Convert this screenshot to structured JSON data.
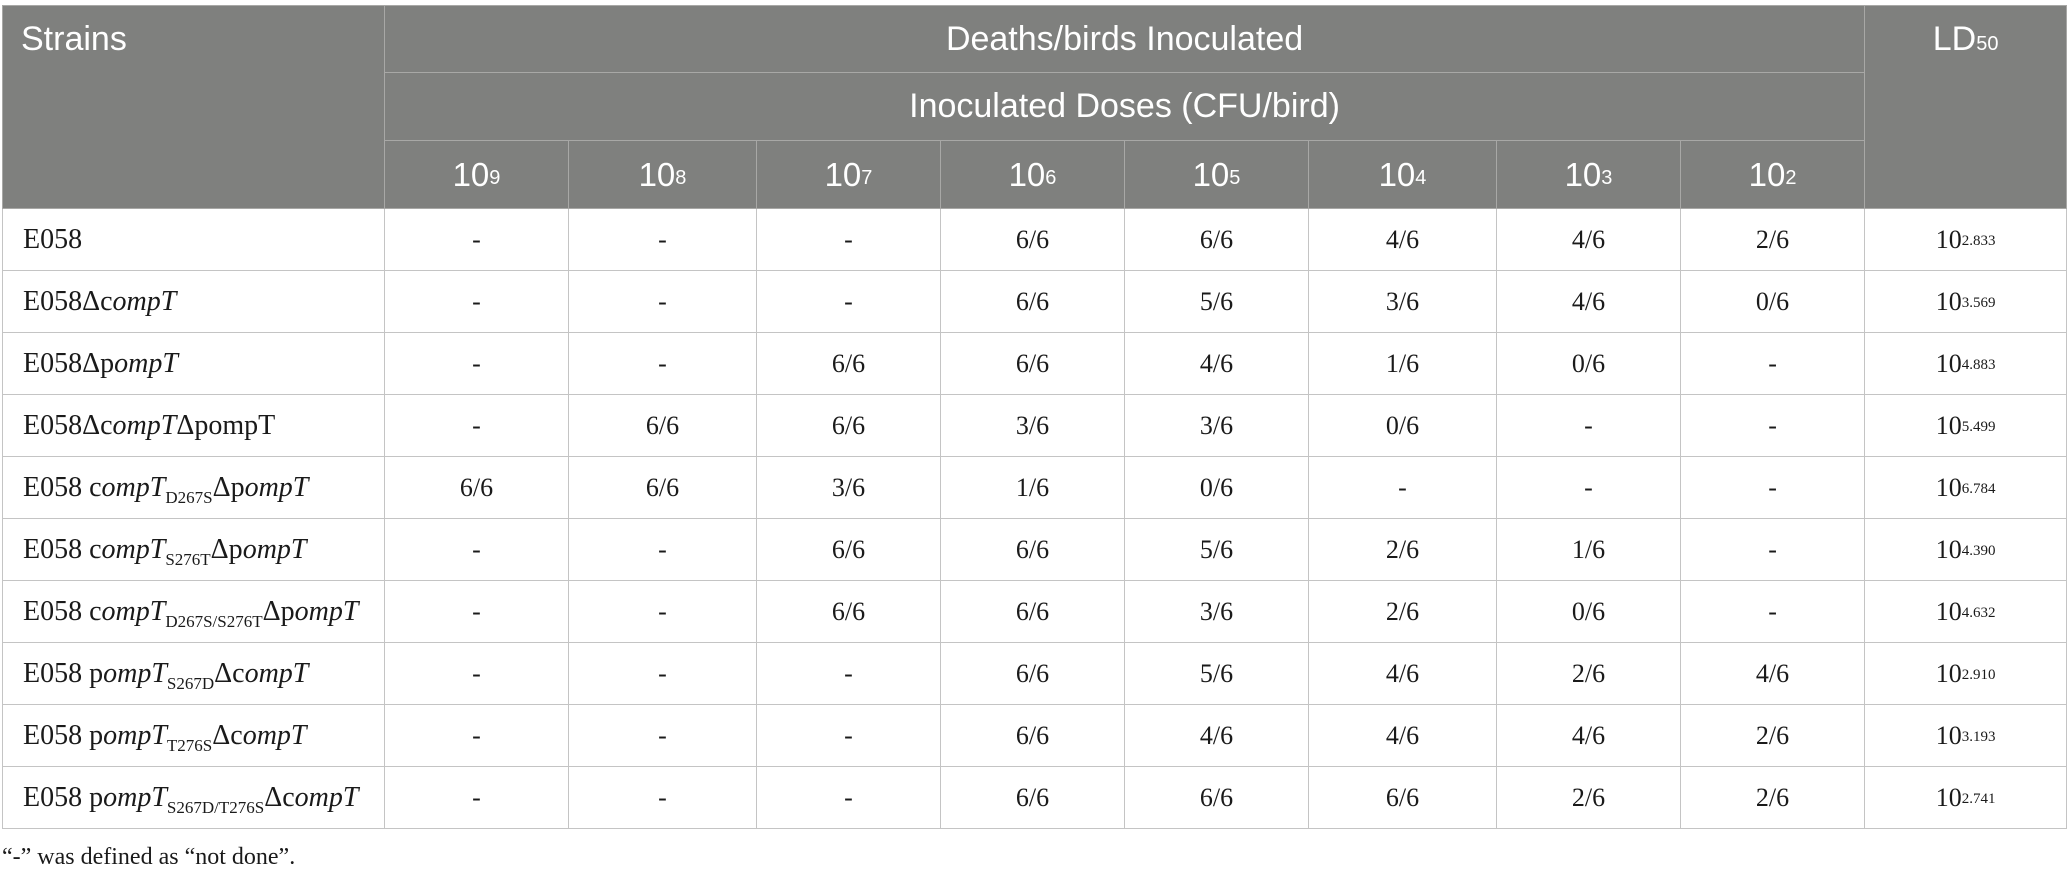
{
  "header": {
    "strains": "Strains",
    "deaths": "Deaths/birds Inoculated",
    "doses_title": "Inoculated Doses (CFU/bird)",
    "ld_base": "LD",
    "ld_sub": "50",
    "dose_base": "10",
    "doses": [
      "9",
      "8",
      "7",
      "6",
      "5",
      "4",
      "3",
      "2"
    ]
  },
  "rows": [
    {
      "strain": {
        "pre": "E058",
        "s1": "",
        "mid": "",
        "sub": "",
        "post": ""
      },
      "values": [
        "-",
        "-",
        "-",
        "6/6",
        "6/6",
        "4/6",
        "4/6",
        "2/6"
      ],
      "ld_base": "10",
      "ld_exp": "2.833"
    },
    {
      "strain": {
        "pre": "E058Δc",
        "s1": "ompT",
        "mid": "",
        "sub": "",
        "post": ""
      },
      "values": [
        "-",
        "-",
        "-",
        "6/6",
        "5/6",
        "3/6",
        "4/6",
        "0/6"
      ],
      "ld_base": "10",
      "ld_exp": "3.569"
    },
    {
      "strain": {
        "pre": "E058Δp",
        "s1": "ompT",
        "mid": "",
        "sub": "",
        "post": ""
      },
      "values": [
        "-",
        "-",
        "6/6",
        "6/6",
        "4/6",
        "1/6",
        "0/6",
        "-"
      ],
      "ld_base": "10",
      "ld_exp": "4.883"
    },
    {
      "strain": {
        "pre": "E058Δc",
        "s1": "ompT",
        "mid": "Δp",
        "sub": "",
        "post": "ompT"
      },
      "values": [
        "-",
        "6/6",
        "6/6",
        "3/6",
        "3/6",
        "0/6",
        "-",
        "-"
      ],
      "ld_base": "10",
      "ld_exp": "5.499"
    },
    {
      "strain": {
        "pre": "E058 c",
        "s1": "ompT",
        "mid": "",
        "sub": "D267S",
        "post": "Δp",
        "s2": "ompT"
      },
      "values": [
        "6/6",
        "6/6",
        "3/6",
        "1/6",
        "0/6",
        "-",
        "-",
        "-"
      ],
      "ld_base": "10",
      "ld_exp": "6.784"
    },
    {
      "strain": {
        "pre": "E058 c",
        "s1": "ompT",
        "mid": "",
        "sub": "S276T",
        "post": "Δp",
        "s2": "ompT"
      },
      "values": [
        "-",
        "-",
        "6/6",
        "6/6",
        "5/6",
        "2/6",
        "1/6",
        "-"
      ],
      "ld_base": "10",
      "ld_exp": "4.390"
    },
    {
      "strain": {
        "pre": "E058 c",
        "s1": "ompT",
        "mid": "",
        "sub": "D267S/S276T",
        "post": "Δp",
        "s2": "ompT"
      },
      "values": [
        "-",
        "-",
        "6/6",
        "6/6",
        "3/6",
        "2/6",
        "0/6",
        "-"
      ],
      "ld_base": "10",
      "ld_exp": "4.632"
    },
    {
      "strain": {
        "pre": "E058 p",
        "s1": "ompT",
        "mid": "",
        "sub": "S267D",
        "post": "Δc",
        "s2": "ompT"
      },
      "values": [
        "-",
        "-",
        "-",
        "6/6",
        "5/6",
        "4/6",
        "2/6",
        "4/6"
      ],
      "ld_base": "10",
      "ld_exp": "2.910"
    },
    {
      "strain": {
        "pre": "E058 p",
        "s1": "ompT",
        "mid": "",
        "sub": "T276S",
        "post": "Δc",
        "s2": "ompT"
      },
      "values": [
        "-",
        "-",
        "-",
        "6/6",
        "4/6",
        "4/6",
        "4/6",
        "2/6"
      ],
      "ld_base": "10",
      "ld_exp": "3.193"
    },
    {
      "strain": {
        "pre": "E058 p",
        "s1": "ompT",
        "mid": "",
        "sub": "S267D/T276S",
        "post": "Δc",
        "s2": "ompT"
      },
      "values": [
        "-",
        "-",
        "-",
        "6/6",
        "6/6",
        "6/6",
        "2/6",
        "2/6"
      ],
      "ld_base": "10",
      "ld_exp": "2.741"
    }
  ],
  "footnote": "“-” was defined as “not done”."
}
